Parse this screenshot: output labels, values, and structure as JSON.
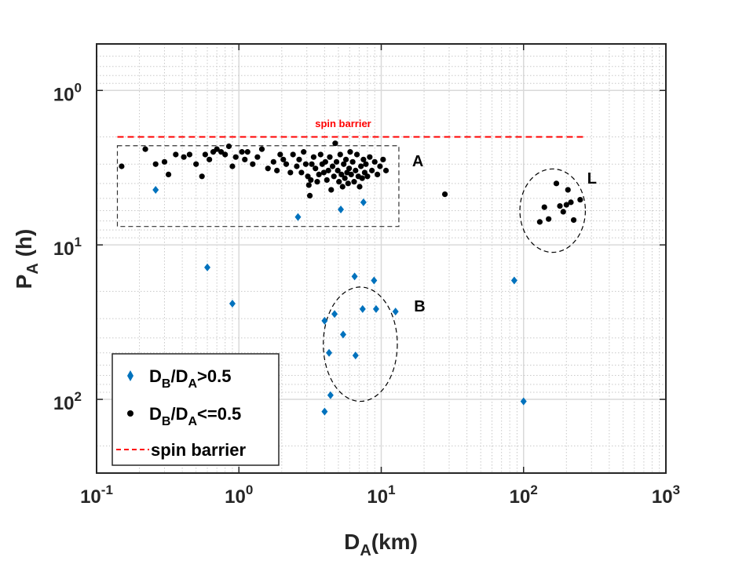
{
  "chart_data": {
    "type": "scatter",
    "xlabel_main": "D",
    "xlabel_sub": "A",
    "xlabel_rest": "(km)",
    "ylabel_main": "P",
    "ylabel_sub": "A",
    "ylabel_rest": " (h)",
    "x_scale": "log",
    "y_scale": "log",
    "y_reversed": true,
    "xlim": [
      0.1,
      1000
    ],
    "ylim": [
      0.5,
      300
    ],
    "grid": true,
    "legend_position": "bottom-left",
    "x_ticks": [
      {
        "value": 0.1,
        "base": "10",
        "exp": "-1"
      },
      {
        "value": 1,
        "base": "10",
        "exp": "0"
      },
      {
        "value": 10,
        "base": "10",
        "exp": "1"
      },
      {
        "value": 100,
        "base": "10",
        "exp": "2"
      },
      {
        "value": 1000,
        "base": "10",
        "exp": "3"
      }
    ],
    "y_ticks": [
      {
        "value": 1,
        "base": "10",
        "exp": "0"
      },
      {
        "value": 10,
        "base": "10",
        "exp": "1"
      },
      {
        "value": 100,
        "base": "10",
        "exp": "2"
      }
    ],
    "series": [
      {
        "name": "D_B/D_A>0.5",
        "legend_main": "D",
        "legend_sub1": "B",
        "legend_mid": "/D",
        "legend_sub2": "A",
        "legend_rest": ">0.5",
        "marker": "diamond",
        "color": "#0072BD",
        "points": [
          [
            0.26,
            4.4
          ],
          [
            0.6,
            14
          ],
          [
            0.9,
            24
          ],
          [
            2.6,
            6.6
          ],
          [
            5.2,
            5.9
          ],
          [
            7.5,
            5.3
          ],
          [
            6.5,
            16
          ],
          [
            8.9,
            17
          ],
          [
            4,
            31
          ],
          [
            4.7,
            28
          ],
          [
            7.4,
            26
          ],
          [
            9.2,
            26
          ],
          [
            12.6,
            27
          ],
          [
            5.4,
            38
          ],
          [
            4.3,
            50
          ],
          [
            6.6,
            52
          ],
          [
            4.4,
            94
          ],
          [
            4,
            120
          ],
          [
            86,
            17
          ],
          [
            100,
            103
          ]
        ]
      },
      {
        "name": "D_B/D_A<=0.5",
        "legend_main": "D",
        "legend_sub1": "B",
        "legend_mid": "/D",
        "legend_sub2": "A",
        "legend_rest": "<=0.5",
        "marker": "dot",
        "color": "#000000",
        "points": [
          [
            0.15,
            3.1
          ],
          [
            0.22,
            2.4
          ],
          [
            0.26,
            3.0
          ],
          [
            0.3,
            2.9
          ],
          [
            0.32,
            3.5
          ],
          [
            0.36,
            2.6
          ],
          [
            0.41,
            2.7
          ],
          [
            0.45,
            2.6
          ],
          [
            0.5,
            3.0
          ],
          [
            0.55,
            3.6
          ],
          [
            0.58,
            2.6
          ],
          [
            0.62,
            2.8
          ],
          [
            0.66,
            2.5
          ],
          [
            0.7,
            2.4
          ],
          [
            0.75,
            2.5
          ],
          [
            0.8,
            2.6
          ],
          [
            0.85,
            2.3
          ],
          [
            0.9,
            3.1
          ],
          [
            0.95,
            2.7
          ],
          [
            1.05,
            2.5
          ],
          [
            1.1,
            2.8
          ],
          [
            1.15,
            2.5
          ],
          [
            1.25,
            3.0
          ],
          [
            1.35,
            2.7
          ],
          [
            1.45,
            2.4
          ],
          [
            1.6,
            3.2
          ],
          [
            1.75,
            2.9
          ],
          [
            1.85,
            3.3
          ],
          [
            1.95,
            2.6
          ],
          [
            2.05,
            2.8
          ],
          [
            2.15,
            3.0
          ],
          [
            2.3,
            3.4
          ],
          [
            2.4,
            2.6
          ],
          [
            2.55,
            3.1
          ],
          [
            2.65,
            2.8
          ],
          [
            2.75,
            3.4
          ],
          [
            2.85,
            2.5
          ],
          [
            2.95,
            3.0
          ],
          [
            3.05,
            3.6
          ],
          [
            3.1,
            4.1
          ],
          [
            3.15,
            4.8
          ],
          [
            3.2,
            3.8
          ],
          [
            3.25,
            3.0
          ],
          [
            3.35,
            2.7
          ],
          [
            3.45,
            3.2
          ],
          [
            3.55,
            3.9
          ],
          [
            3.65,
            3.5
          ],
          [
            3.75,
            2.6
          ],
          [
            3.85,
            3.0
          ],
          [
            3.95,
            3.4
          ],
          [
            4.05,
            2.9
          ],
          [
            4.15,
            3.8
          ],
          [
            4.25,
            3.3
          ],
          [
            4.35,
            2.7
          ],
          [
            4.45,
            4.4
          ],
          [
            4.55,
            3.1
          ],
          [
            4.65,
            3.6
          ],
          [
            4.75,
            2.2
          ],
          [
            4.85,
            2.9
          ],
          [
            4.95,
            3.3
          ],
          [
            5.05,
            3.9
          ],
          [
            5.15,
            2.6
          ],
          [
            5.25,
            3.5
          ],
          [
            5.35,
            4.2
          ],
          [
            5.45,
            3.0
          ],
          [
            5.55,
            3.7
          ],
          [
            5.65,
            2.8
          ],
          [
            5.75,
            3.4
          ],
          [
            5.85,
            4.0
          ],
          [
            5.95,
            3.2
          ],
          [
            6.05,
            2.5
          ],
          [
            6.15,
            3.5
          ],
          [
            6.3,
            2.9
          ],
          [
            6.45,
            3.9
          ],
          [
            6.6,
            3.3
          ],
          [
            6.75,
            2.6
          ],
          [
            6.9,
            3.6
          ],
          [
            7.05,
            4.2
          ],
          [
            7.2,
            3.1
          ],
          [
            7.35,
            3.7
          ],
          [
            7.5,
            2.8
          ],
          [
            7.65,
            3.4
          ],
          [
            7.8,
            3.0
          ],
          [
            8.0,
            3.6
          ],
          [
            8.3,
            2.7
          ],
          [
            8.6,
            3.3
          ],
          [
            9.0,
            2.9
          ],
          [
            9.4,
            3.5
          ],
          [
            9.8,
            3.1
          ],
          [
            10.3,
            2.8
          ],
          [
            10.8,
            3.3
          ],
          [
            28,
            4.7
          ],
          [
            130,
            7.1
          ],
          [
            140,
            5.7
          ],
          [
            150,
            6.8
          ],
          [
            170,
            4.0
          ],
          [
            180,
            5.6
          ],
          [
            190,
            6.1
          ],
          [
            200,
            5.5
          ],
          [
            205,
            4.4
          ],
          [
            215,
            5.3
          ],
          [
            225,
            6.9
          ],
          [
            250,
            5.1
          ]
        ]
      },
      {
        "name": "spin barrier",
        "legend_text": "spin barrier",
        "marker": "dashed-line",
        "color": "#FF0000",
        "y": 2.0
      }
    ],
    "annotations": [
      {
        "text": "spin barrier",
        "x": 5.4,
        "y": 1.73,
        "color": "#FF0000"
      },
      {
        "text": "A",
        "x": 16.5,
        "y": 3.1,
        "color": "#000000"
      },
      {
        "text": "L",
        "x": 280,
        "y": 4.0,
        "color": "#000000"
      },
      {
        "text": "B",
        "x": 17,
        "y": 27,
        "color": "#000000"
      }
    ],
    "regions": [
      {
        "shape": "rect",
        "x": [
          0.14,
          13.3
        ],
        "y": [
          2.28,
          7.6
        ]
      },
      {
        "shape": "ellipse",
        "cx": 6.5,
        "cy": 41,
        "rx_dec": [
          0.22,
          0.3
        ],
        "ry_dec": [
          0.34,
          0.4
        ]
      },
      {
        "shape": "ellipse",
        "cx": 160,
        "cy": 6.0,
        "rx_dec": 0.23,
        "ry_dec": 0.27
      }
    ]
  }
}
